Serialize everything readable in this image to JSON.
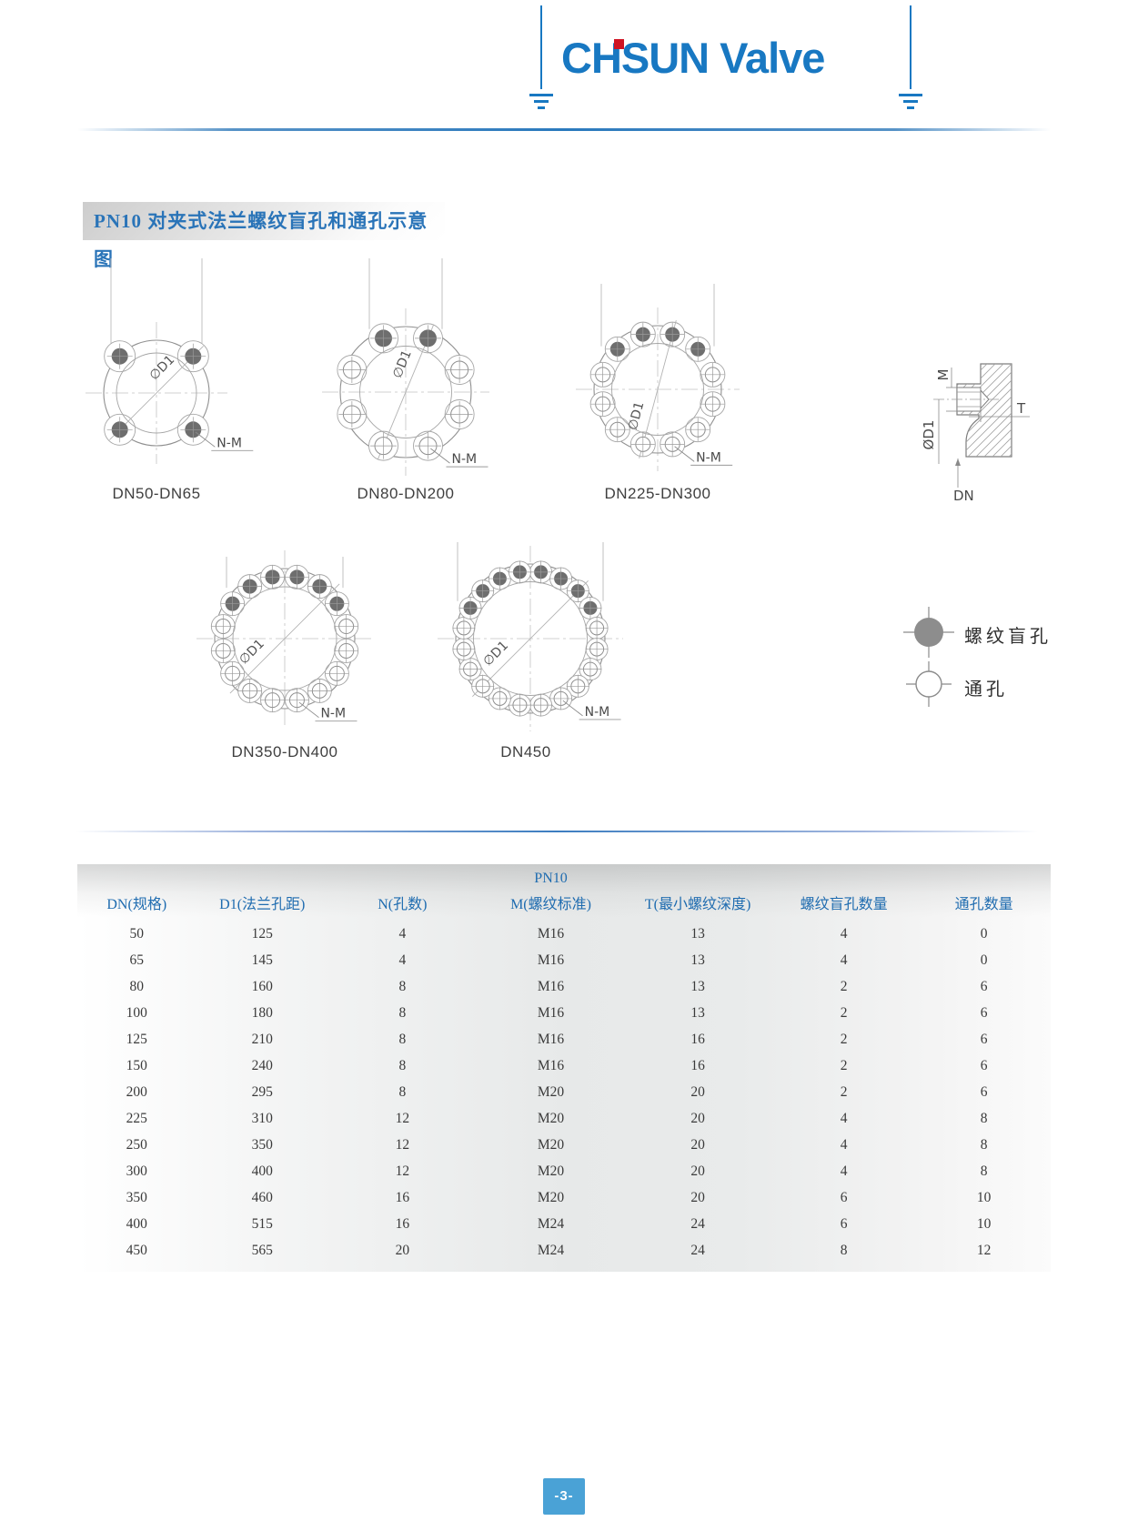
{
  "page": {
    "number": "-3-"
  },
  "header": {
    "logo_text": "CHSUN Valve",
    "logo_color": "#1878c2",
    "logo_dot_color": "#cf1322"
  },
  "section_title": "PN10 对夹式法兰螺纹盲孔和通孔示意图",
  "diagram_labels": {
    "d1": "∅D1",
    "nm": "N-M"
  },
  "diagrams": [
    {
      "caption": "DN50-DN65",
      "total_holes": 4,
      "blind_holes": 4,
      "through_holes": 0
    },
    {
      "caption": "DN80-DN200",
      "total_holes": 8,
      "blind_holes": 2,
      "through_holes": 6
    },
    {
      "caption": "DN225-DN300",
      "total_holes": 12,
      "blind_holes": 4,
      "through_holes": 8
    },
    {
      "caption": "DN350-DN400",
      "total_holes": 16,
      "blind_holes": 6,
      "through_holes": 10
    },
    {
      "caption": "DN450",
      "total_holes": 20,
      "blind_holes": 8,
      "through_holes": 12
    }
  ],
  "cross_section": {
    "labels": {
      "m": "M",
      "d1": "ØD1",
      "t": "T",
      "dn": "DN"
    }
  },
  "legend": [
    {
      "symbol": "blind-hole",
      "label": "螺纹盲孔"
    },
    {
      "symbol": "through-hole",
      "label": "通孔"
    }
  ],
  "table": {
    "group_header": "PN10",
    "columns": [
      "DN(规格)",
      "D1(法兰孔距)",
      "N(孔数)",
      "M(螺纹标准)",
      "T(最小螺纹深度)",
      "螺纹盲孔数量",
      "通孔数量"
    ],
    "rows": [
      [
        "50",
        "125",
        "4",
        "M16",
        "13",
        "4",
        "0"
      ],
      [
        "65",
        "145",
        "4",
        "M16",
        "13",
        "4",
        "0"
      ],
      [
        "80",
        "160",
        "8",
        "M16",
        "13",
        "2",
        "6"
      ],
      [
        "100",
        "180",
        "8",
        "M16",
        "13",
        "2",
        "6"
      ],
      [
        "125",
        "210",
        "8",
        "M16",
        "16",
        "2",
        "6"
      ],
      [
        "150",
        "240",
        "8",
        "M16",
        "16",
        "2",
        "6"
      ],
      [
        "200",
        "295",
        "8",
        "M20",
        "20",
        "2",
        "6"
      ],
      [
        "225",
        "310",
        "12",
        "M20",
        "20",
        "4",
        "8"
      ],
      [
        "250",
        "350",
        "12",
        "M20",
        "20",
        "4",
        "8"
      ],
      [
        "300",
        "400",
        "12",
        "M20",
        "20",
        "4",
        "8"
      ],
      [
        "350",
        "460",
        "16",
        "M20",
        "20",
        "6",
        "10"
      ],
      [
        "400",
        "515",
        "16",
        "M24",
        "24",
        "6",
        "10"
      ],
      [
        "450",
        "565",
        "20",
        "M24",
        "24",
        "8",
        "12"
      ]
    ]
  },
  "colors": {
    "brand_blue": "#1878c2",
    "accent_red": "#cf1322",
    "title_blue": "#2a74b8",
    "table_header_blue": "#1f6cb0",
    "footer_blue": "#4aa2d6",
    "line_gray": "#8f8f8f",
    "blind_hole_fill": "#6e6e6e"
  }
}
